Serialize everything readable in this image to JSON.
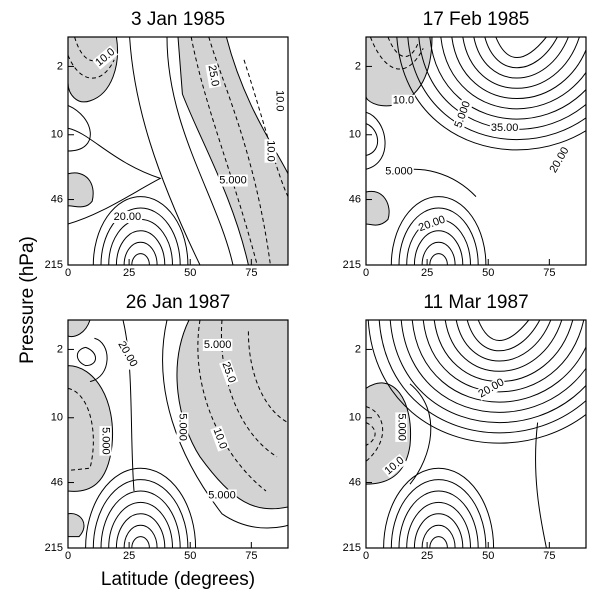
{
  "figure": {
    "xlabel": "Latitude (degrees)",
    "ylabel": "Pressure (hPa)"
  },
  "chart_data": [
    {
      "type": "contour",
      "title": "3 Jan 1985",
      "xlim": [
        0,
        90
      ],
      "xticks": [
        0,
        25,
        50,
        75
      ],
      "ylim": [
        215,
        1
      ],
      "yticks": [
        2,
        10,
        46,
        215
      ],
      "log_y": true,
      "shade_color": "#d3d3d3",
      "annotations": [
        "10.0",
        "25.0",
        "10.0",
        "10.0",
        "5.000",
        "20.00"
      ]
    },
    {
      "type": "contour",
      "title": "17 Feb 1985",
      "xlim": [
        0,
        90
      ],
      "xticks": [
        0,
        25,
        50,
        75
      ],
      "ylim": [
        215,
        1
      ],
      "yticks": [
        2,
        10,
        46,
        215
      ],
      "log_y": true,
      "shade_color": "#d3d3d3",
      "annotations": [
        "10.0",
        "5.000",
        "35.00",
        "20.00",
        "5.000",
        "20.00"
      ]
    },
    {
      "type": "contour",
      "title": "26 Jan 1987",
      "xlim": [
        0,
        90
      ],
      "xticks": [
        0,
        25,
        50,
        75
      ],
      "ylim": [
        215,
        1
      ],
      "yticks": [
        2,
        10,
        46,
        215
      ],
      "log_y": true,
      "shade_color": "#d3d3d3",
      "annotations": [
        "20.00",
        "5.000",
        "25.0",
        "5.000",
        "10.0",
        "5.000",
        "5.000"
      ]
    },
    {
      "type": "contour",
      "title": "11 Mar 1987",
      "xlim": [
        0,
        90
      ],
      "xticks": [
        0,
        25,
        50,
        75
      ],
      "ylim": [
        215,
        1
      ],
      "yticks": [
        2,
        10,
        46,
        215
      ],
      "log_y": true,
      "shade_color": "#d3d3d3",
      "annotations": [
        "5.000",
        "20.00",
        "10.0"
      ]
    }
  ]
}
